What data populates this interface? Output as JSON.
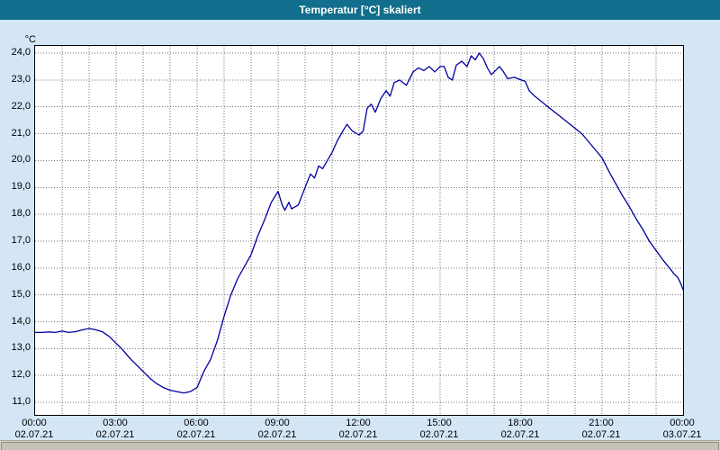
{
  "window": {
    "title": "Temperatur [°C] skaliert"
  },
  "colors": {
    "titlebar": "#116e8c",
    "background": "#d4e6f6",
    "plot_background": "#ffffff",
    "grid": "#000000",
    "line": "#0000a0"
  },
  "chart_data": {
    "type": "line",
    "title": "Temperatur [°C] skaliert",
    "xlabel": "",
    "ylabel": "°C",
    "ylim": [
      10.5,
      24.4
    ],
    "x_hours_range": [
      0,
      24
    ],
    "grid": true,
    "legend": "none",
    "y_ticks": [
      "24,0",
      "23,0",
      "22,0",
      "21,0",
      "20,0",
      "19,0",
      "18,0",
      "17,0",
      "16,0",
      "15,0",
      "14,0",
      "13,0",
      "12,0",
      "11,0"
    ],
    "y_tick_values": [
      24,
      23,
      22,
      21,
      20,
      19,
      18,
      17,
      16,
      15,
      14,
      13,
      12,
      11
    ],
    "x_ticks": [
      {
        "hour": 0,
        "time": "00:00",
        "date": "02.07.21"
      },
      {
        "hour": 3,
        "time": "03:00",
        "date": "02.07.21"
      },
      {
        "hour": 6,
        "time": "06:00",
        "date": "02.07.21"
      },
      {
        "hour": 9,
        "time": "09:00",
        "date": "02.07.21"
      },
      {
        "hour": 12,
        "time": "12:00",
        "date": "02.07.21"
      },
      {
        "hour": 15,
        "time": "15:00",
        "date": "02.07.21"
      },
      {
        "hour": 18,
        "time": "18:00",
        "date": "02.07.21"
      },
      {
        "hour": 21,
        "time": "21:00",
        "date": "02.07.21"
      },
      {
        "hour": 24,
        "time": "00:00",
        "date": "03.07.21"
      }
    ],
    "series": [
      {
        "name": "Temperatur",
        "points": [
          [
            0,
            13.6
          ],
          [
            0.25,
            13.6
          ],
          [
            0.5,
            13.62
          ],
          [
            0.75,
            13.6
          ],
          [
            1,
            13.65
          ],
          [
            1.25,
            13.6
          ],
          [
            1.5,
            13.63
          ],
          [
            1.75,
            13.7
          ],
          [
            2,
            13.75
          ],
          [
            2.25,
            13.7
          ],
          [
            2.5,
            13.62
          ],
          [
            2.75,
            13.45
          ],
          [
            3,
            13.2
          ],
          [
            3.25,
            12.95
          ],
          [
            3.5,
            12.65
          ],
          [
            3.75,
            12.4
          ],
          [
            4,
            12.15
          ],
          [
            4.25,
            11.9
          ],
          [
            4.5,
            11.7
          ],
          [
            4.75,
            11.55
          ],
          [
            5,
            11.45
          ],
          [
            5.25,
            11.4
          ],
          [
            5.5,
            11.35
          ],
          [
            5.75,
            11.4
          ],
          [
            6,
            11.55
          ],
          [
            6.25,
            12.15
          ],
          [
            6.5,
            12.6
          ],
          [
            6.75,
            13.3
          ],
          [
            7,
            14.2
          ],
          [
            7.25,
            15.0
          ],
          [
            7.5,
            15.6
          ],
          [
            7.75,
            16.05
          ],
          [
            8,
            16.5
          ],
          [
            8.25,
            17.2
          ],
          [
            8.5,
            17.8
          ],
          [
            8.75,
            18.45
          ],
          [
            9,
            18.85
          ],
          [
            9.15,
            18.35
          ],
          [
            9.25,
            18.15
          ],
          [
            9.4,
            18.45
          ],
          [
            9.5,
            18.2
          ],
          [
            9.75,
            18.35
          ],
          [
            10,
            19.0
          ],
          [
            10.2,
            19.5
          ],
          [
            10.35,
            19.35
          ],
          [
            10.5,
            19.8
          ],
          [
            10.65,
            19.7
          ],
          [
            10.85,
            20.05
          ],
          [
            11,
            20.3
          ],
          [
            11.2,
            20.75
          ],
          [
            11.4,
            21.1
          ],
          [
            11.55,
            21.35
          ],
          [
            11.75,
            21.1
          ],
          [
            12,
            20.95
          ],
          [
            12.15,
            21.1
          ],
          [
            12.3,
            21.95
          ],
          [
            12.45,
            22.1
          ],
          [
            12.6,
            21.8
          ],
          [
            12.8,
            22.3
          ],
          [
            13,
            22.6
          ],
          [
            13.15,
            22.4
          ],
          [
            13.3,
            22.9
          ],
          [
            13.5,
            23.0
          ],
          [
            13.75,
            22.8
          ],
          [
            14,
            23.3
          ],
          [
            14.2,
            23.45
          ],
          [
            14.4,
            23.35
          ],
          [
            14.6,
            23.5
          ],
          [
            14.8,
            23.3
          ],
          [
            15,
            23.5
          ],
          [
            15.15,
            23.5
          ],
          [
            15.3,
            23.1
          ],
          [
            15.45,
            23.0
          ],
          [
            15.6,
            23.55
          ],
          [
            15.8,
            23.7
          ],
          [
            16,
            23.5
          ],
          [
            16.15,
            23.9
          ],
          [
            16.3,
            23.75
          ],
          [
            16.45,
            24.0
          ],
          [
            16.6,
            23.8
          ],
          [
            16.75,
            23.45
          ],
          [
            16.9,
            23.2
          ],
          [
            17.05,
            23.35
          ],
          [
            17.2,
            23.5
          ],
          [
            17.35,
            23.3
          ],
          [
            17.5,
            23.05
          ],
          [
            17.75,
            23.1
          ],
          [
            18,
            23.0
          ],
          [
            18.15,
            22.95
          ],
          [
            18.3,
            22.6
          ],
          [
            18.5,
            22.4
          ],
          [
            18.75,
            22.2
          ],
          [
            19,
            22.0
          ],
          [
            19.25,
            21.8
          ],
          [
            19.5,
            21.6
          ],
          [
            19.75,
            21.4
          ],
          [
            20,
            21.2
          ],
          [
            20.25,
            21.0
          ],
          [
            20.5,
            20.7
          ],
          [
            20.75,
            20.4
          ],
          [
            21,
            20.1
          ],
          [
            21.25,
            19.6
          ],
          [
            21.5,
            19.15
          ],
          [
            21.75,
            18.7
          ],
          [
            22,
            18.3
          ],
          [
            22.25,
            17.85
          ],
          [
            22.5,
            17.45
          ],
          [
            22.75,
            17.0
          ],
          [
            23,
            16.65
          ],
          [
            23.25,
            16.3
          ],
          [
            23.5,
            16.0
          ],
          [
            23.65,
            15.8
          ],
          [
            23.8,
            15.65
          ],
          [
            23.9,
            15.45
          ],
          [
            24,
            15.2
          ]
        ]
      }
    ]
  }
}
